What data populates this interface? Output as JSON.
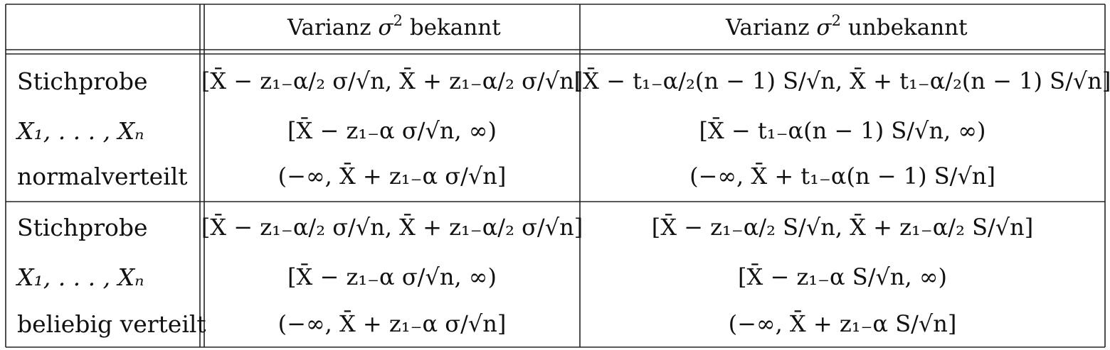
{
  "header": {
    "col_known": "Varianz σ² bekannt",
    "col_known_prefix": "Varianz",
    "col_known_sym": "σ",
    "col_known_exp": "2",
    "col_known_suffix": "bekannt",
    "col_unknown_prefix": "Varianz",
    "col_unknown_sym": "σ",
    "col_unknown_exp": "2",
    "col_unknown_suffix": "unbekannt"
  },
  "sections": [
    {
      "label_lines": [
        "Stichprobe",
        "X₁, . . . , Xₙ",
        "normalverteilt"
      ],
      "known": [
        "[X̄ − z₁₋α/₂ σ/√n,  X̄ + z₁₋α/₂ σ/√n]",
        "[X̄ − z₁₋α σ/√n,  ∞)",
        "(−∞,  X̄ + z₁₋α σ/√n]"
      ],
      "unknown": [
        "[X̄ − t₁₋α/₂(n − 1) S/√n,  X̄ + t₁₋α/₂(n − 1) S/√n]",
        "[X̄ − t₁₋α(n − 1) S/√n,  ∞)",
        "(−∞,  X̄ + t₁₋α(n − 1) S/√n]"
      ]
    },
    {
      "label_lines": [
        "Stichprobe",
        "X₁, . . . , Xₙ",
        "beliebig verteilt"
      ],
      "known": [
        "[X̄ − z₁₋α/₂ σ/√n,  X̄ + z₁₋α/₂ σ/√n]",
        "[X̄ − z₁₋α σ/√n,  ∞)",
        "(−∞,  X̄ + z₁₋α σ/√n]"
      ],
      "unknown": [
        "[X̄ − z₁₋α/₂ S/√n,  X̄ + z₁₋α/₂ S/√n]",
        "[X̄ − z₁₋α S/√n,  ∞)",
        "(−∞,  X̄ + z₁₋α S/√n]"
      ]
    }
  ]
}
